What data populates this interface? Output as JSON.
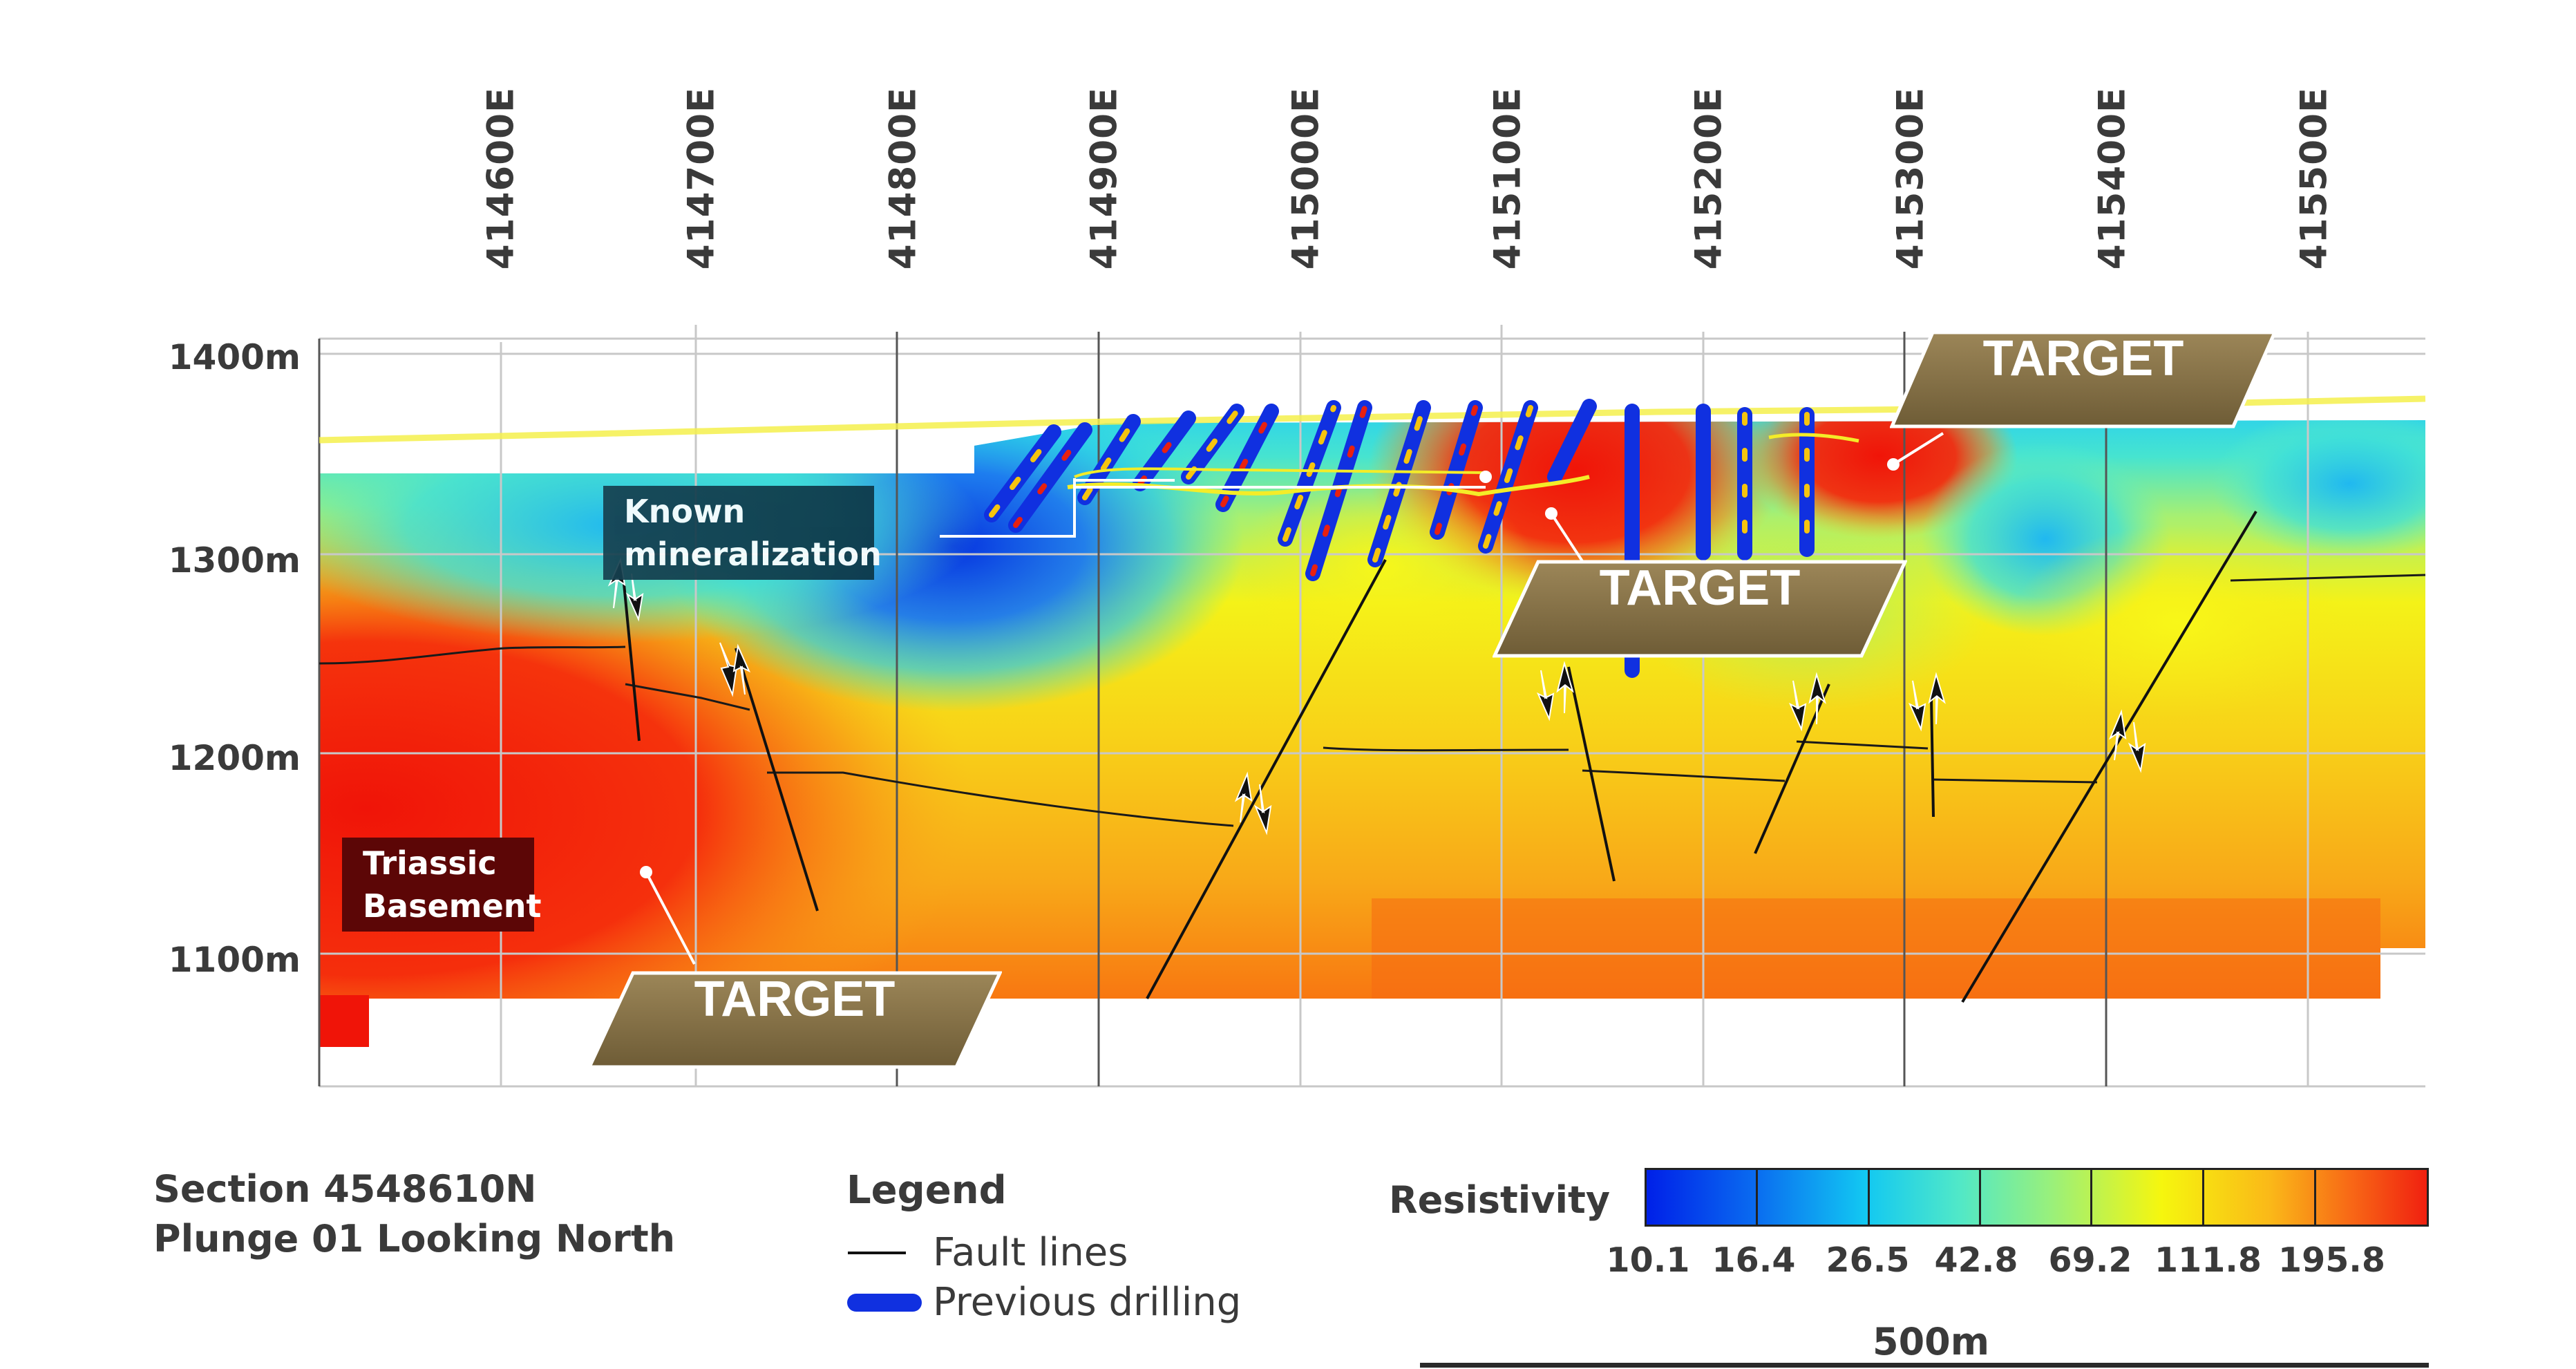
{
  "eastings": [
    "414600E",
    "414700E",
    "414800E",
    "414900E",
    "415000E",
    "415100E",
    "415200E",
    "415300E",
    "415400E",
    "415500E"
  ],
  "elevations": [
    "1400m",
    "1300m",
    "1200m",
    "1100m"
  ],
  "callouts": {
    "known_mineralization": [
      "Known",
      "mineralization"
    ],
    "triassic_basement": [
      "Triassic",
      "Basement"
    ]
  },
  "targets": [
    "TARGET",
    "TARGET",
    "TARGET"
  ],
  "section": {
    "line1": "Section 4548610N",
    "line2": "Plunge 01 Looking North"
  },
  "legend": {
    "title": "Legend",
    "fault_lines": "Fault lines",
    "previous_drilling": "Previous drilling"
  },
  "resistivity": {
    "title": "Resistivity",
    "ticks": [
      "10.1",
      "16.4",
      "26.5",
      "42.8",
      "69.2",
      "111.8",
      "195.8"
    ],
    "colors": [
      "#0020e8",
      "#12c8f2",
      "#9af07a",
      "#f6f60e",
      "#fab818",
      "#f02010"
    ]
  },
  "scale": {
    "label": "500m"
  },
  "colors": {
    "target_tag": "#8a7446",
    "callout_teal": "#123c4e",
    "callout_red": "#5c0606",
    "fault_line": "#111111",
    "drilling": "#1030e0"
  }
}
